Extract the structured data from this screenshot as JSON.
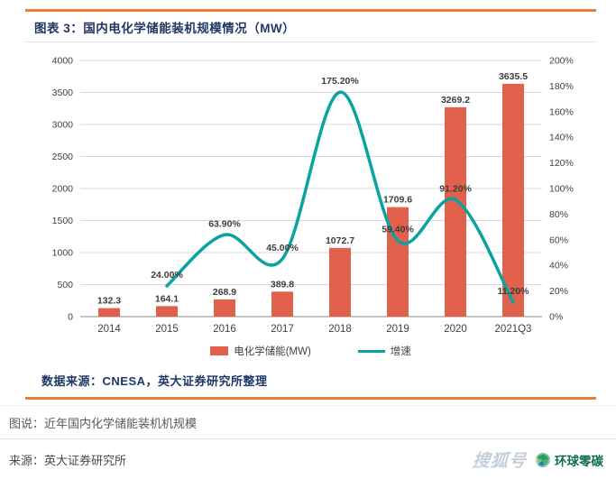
{
  "figure": {
    "title": "图表 3：国内电化学储能装机规模情况（MW）",
    "source_note": "数据来源：CNESA，英大证券研究所整理"
  },
  "caption": {
    "desc": "图说：近年国内化学储能装机机规模",
    "source": "来源：英大证券研究所"
  },
  "watermark": {
    "text": "搜狐号",
    "brand": "环球零碳"
  },
  "colors": {
    "bar": "#E2614C",
    "line": "#0AA3A0",
    "accent_border": "#ED7D31",
    "title_navy": "#1F3864",
    "gridline": "#D9D9D9",
    "axis_line": "#8C8C8C"
  },
  "chart_data": {
    "type": "combo-bar-line",
    "categories": [
      "2014",
      "2015",
      "2016",
      "2017",
      "2018",
      "2019",
      "2020",
      "2021Q3"
    ],
    "series": [
      {
        "name": "电化学储能(MW)",
        "type": "bar",
        "axis": "left",
        "values": [
          132.3,
          164.1,
          268.9,
          389.8,
          1072.7,
          1709.6,
          3269.2,
          3635.5
        ],
        "labels": [
          "132.3",
          "164.1",
          "268.9",
          "389.8",
          "1072.7",
          "1709.6",
          "3269.2",
          "3635.5"
        ]
      },
      {
        "name": "增速",
        "type": "line",
        "axis": "right",
        "values": [
          null,
          24.0,
          63.9,
          45.0,
          175.2,
          59.4,
          91.2,
          11.2
        ],
        "labels": [
          null,
          "24.00%",
          "63.90%",
          "45.00%",
          "175.20%",
          "59.40%",
          "91.20%",
          "11.20%"
        ]
      }
    ],
    "left_axis": {
      "min": 0,
      "max": 4000,
      "step": 500,
      "tick_labels": [
        "0",
        "500",
        "1000",
        "1500",
        "2000",
        "2500",
        "3000",
        "3500",
        "4000"
      ]
    },
    "right_axis": {
      "min": 0,
      "max": 200,
      "step": 20,
      "tick_labels": [
        "0%",
        "20%",
        "40%",
        "60%",
        "80%",
        "100%",
        "120%",
        "140%",
        "160%",
        "180%",
        "200%"
      ]
    },
    "legend": [
      "电化学储能(MW)",
      "增速"
    ],
    "grid": "horizontal",
    "legend_position": "bottom-center"
  }
}
